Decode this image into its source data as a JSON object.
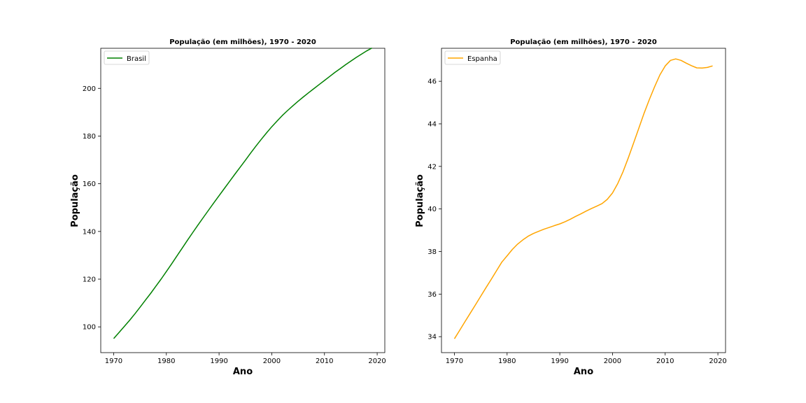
{
  "chart_data": [
    {
      "type": "line",
      "title": "População (em milhões), 1970 - 2020",
      "xlabel": "Ano",
      "ylabel": "População",
      "xlim": [
        1967.55,
        2021.45
      ],
      "ylim": [
        89.2,
        216.8
      ],
      "xticks": [
        "1970",
        "1980",
        "1990",
        "2000",
        "2010",
        "2020"
      ],
      "yticks": [
        "100",
        "120",
        "140",
        "160",
        "180",
        "200"
      ],
      "grid": false,
      "legend_position": "top-left",
      "series": [
        {
          "name": "Brasil",
          "color": "#008000",
          "x": [
            1970,
            1971,
            1972,
            1973,
            1974,
            1975,
            1976,
            1977,
            1978,
            1979,
            1980,
            1981,
            1982,
            1983,
            1984,
            1985,
            1986,
            1987,
            1988,
            1989,
            1990,
            1991,
            1992,
            1993,
            1994,
            1995,
            1996,
            1997,
            1998,
            1999,
            2000,
            2001,
            2002,
            2003,
            2004,
            2005,
            2006,
            2007,
            2008,
            2009,
            2010,
            2011,
            2012,
            2013,
            2014,
            2015,
            2016,
            2017,
            2018,
            2019
          ],
          "values": [
            95.1,
            97.6,
            100.1,
            102.7,
            105.4,
            108.2,
            111.1,
            114.0,
            117.0,
            120.0,
            123.2,
            126.4,
            129.7,
            133.0,
            136.3,
            139.5,
            142.7,
            145.8,
            148.9,
            152.0,
            155.0,
            158.0,
            161.0,
            164.0,
            166.9,
            169.9,
            172.9,
            175.8,
            178.6,
            181.3,
            183.9,
            186.3,
            188.6,
            190.7,
            192.7,
            194.6,
            196.4,
            198.2,
            199.9,
            201.6,
            203.3,
            205.0,
            206.7,
            208.3,
            209.9,
            211.4,
            212.9,
            214.3,
            215.7,
            216.9
          ]
        }
      ]
    },
    {
      "type": "line",
      "title": "População (em milhões), 1970 - 2020",
      "xlabel": "Ano",
      "ylabel": "População",
      "xlim": [
        1967.55,
        2021.45
      ],
      "ylim": [
        33.25,
        47.55
      ],
      "xticks": [
        "1970",
        "1980",
        "1990",
        "2000",
        "2010",
        "2020"
      ],
      "yticks": [
        "34",
        "36",
        "38",
        "40",
        "42",
        "44",
        "46"
      ],
      "grid": false,
      "legend_position": "top-left",
      "series": [
        {
          "name": "Espanha",
          "color": "#FFA500",
          "x": [
            1970,
            1971,
            1972,
            1973,
            1974,
            1975,
            1976,
            1977,
            1978,
            1979,
            1980,
            1981,
            1982,
            1983,
            1984,
            1985,
            1986,
            1987,
            1988,
            1989,
            1990,
            1991,
            1992,
            1993,
            1994,
            1995,
            1996,
            1997,
            1998,
            1999,
            2000,
            2001,
            2002,
            2003,
            2004,
            2005,
            2006,
            2007,
            2008,
            2009,
            2010,
            2011,
            2012,
            2013,
            2014,
            2015,
            2016,
            2017,
            2018,
            2019
          ],
          "values": [
            33.9,
            34.3,
            34.7,
            35.1,
            35.5,
            35.9,
            36.3,
            36.7,
            37.1,
            37.5,
            37.8,
            38.1,
            38.35,
            38.55,
            38.72,
            38.85,
            38.95,
            39.05,
            39.13,
            39.22,
            39.3,
            39.4,
            39.52,
            39.65,
            39.77,
            39.9,
            40.02,
            40.13,
            40.25,
            40.45,
            40.75,
            41.2,
            41.75,
            42.4,
            43.1,
            43.8,
            44.5,
            45.15,
            45.75,
            46.3,
            46.72,
            46.98,
            47.05,
            46.98,
            46.85,
            46.73,
            46.63,
            46.62,
            46.65,
            46.72
          ]
        }
      ]
    }
  ]
}
